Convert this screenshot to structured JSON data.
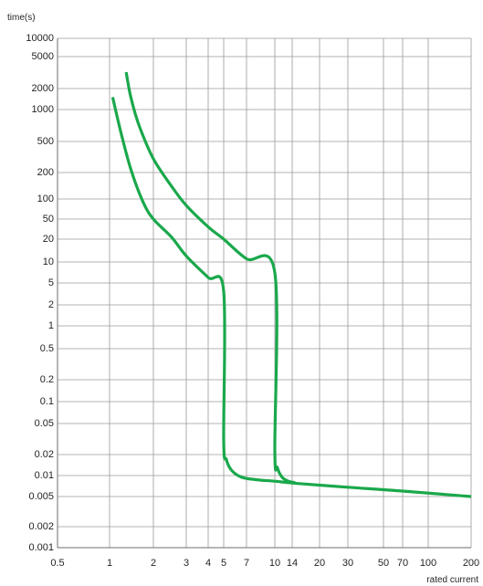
{
  "chart_data": {
    "type": "line",
    "title": "",
    "ylabel": "time(s)",
    "xlabel": "rated current",
    "x_scale": "log",
    "y_scale": "log",
    "xlim": [
      0.5,
      200
    ],
    "ylim": [
      0.001,
      10000
    ],
    "grid": true,
    "line_color": "#1aa84b",
    "y_ticks": [
      {
        "label": "10000",
        "value": 10000
      },
      {
        "label": "5000",
        "value": 5000
      },
      {
        "label": "2000",
        "value": 2000
      },
      {
        "label": "1000",
        "value": 1000
      },
      {
        "label": "500",
        "value": 500
      },
      {
        "label": "200",
        "value": 200
      },
      {
        "label": "100",
        "value": 100
      },
      {
        "label": "50",
        "value": 50
      },
      {
        "label": "20",
        "value": 20
      },
      {
        "label": "10",
        "value": 10
      },
      {
        "label": "5",
        "value": 5
      },
      {
        "label": "2",
        "value": 2
      },
      {
        "label": "1",
        "value": 1
      },
      {
        "label": "0.5",
        "value": 0.5
      },
      {
        "label": "0.2",
        "value": 0.2
      },
      {
        "label": "0.1",
        "value": 0.1
      },
      {
        "label": "0.05",
        "value": 0.05
      },
      {
        "label": "0.02",
        "value": 0.02
      },
      {
        "label": "0.01",
        "value": 0.01
      },
      {
        "label": "0.005",
        "value": 0.005
      },
      {
        "label": "0.002",
        "value": 0.002
      },
      {
        "label": "0.001",
        "value": 0.001
      }
    ],
    "x_ticks": [
      {
        "label": "0.5",
        "value": 0.5
      },
      {
        "label": "1",
        "value": 1
      },
      {
        "label": "2",
        "value": 2
      },
      {
        "label": "3",
        "value": 3
      },
      {
        "label": "4",
        "value": 4
      },
      {
        "label": "5",
        "value": 5
      },
      {
        "label": "7",
        "value": 7
      },
      {
        "label": "10",
        "value": 10
      },
      {
        "label": "14",
        "value": 14
      },
      {
        "label": "20",
        "value": 20
      },
      {
        "label": "30",
        "value": 30
      },
      {
        "label": "50",
        "value": 50
      },
      {
        "label": "70",
        "value": 70
      },
      {
        "label": "100",
        "value": 100
      },
      {
        "label": "200",
        "value": 200
      }
    ],
    "series": [
      {
        "points": [
          [
            1.05,
            1500
          ],
          [
            1.2,
            600
          ],
          [
            1.4,
            220
          ],
          [
            1.7,
            90
          ],
          [
            2.0,
            50
          ],
          [
            2.5,
            22
          ],
          [
            3.0,
            12
          ],
          [
            4.0,
            6
          ],
          [
            5.0,
            3.5
          ],
          [
            5.0,
            0.03
          ],
          [
            5.2,
            0.017
          ],
          [
            5.6,
            0.012
          ],
          [
            6.5,
            0.0095
          ],
          [
            8.0,
            0.0087
          ],
          [
            10.0,
            0.0083
          ],
          [
            15.0,
            0.0077
          ],
          [
            30.0,
            0.0068
          ],
          [
            70.0,
            0.006
          ],
          [
            200.0,
            0.005
          ]
        ]
      },
      {
        "points": [
          [
            1.3,
            3200
          ],
          [
            1.4,
            1500
          ],
          [
            1.6,
            700
          ],
          [
            2.0,
            300
          ],
          [
            2.5,
            140
          ],
          [
            3.0,
            80
          ],
          [
            4.0,
            35
          ],
          [
            5.0,
            20
          ],
          [
            7.0,
            11
          ],
          [
            10.0,
            7
          ],
          [
            10.0,
            0.022
          ],
          [
            10.5,
            0.013
          ],
          [
            11.5,
            0.0095
          ],
          [
            13.0,
            0.0083
          ],
          [
            14.5,
            0.0079
          ]
        ]
      }
    ]
  }
}
